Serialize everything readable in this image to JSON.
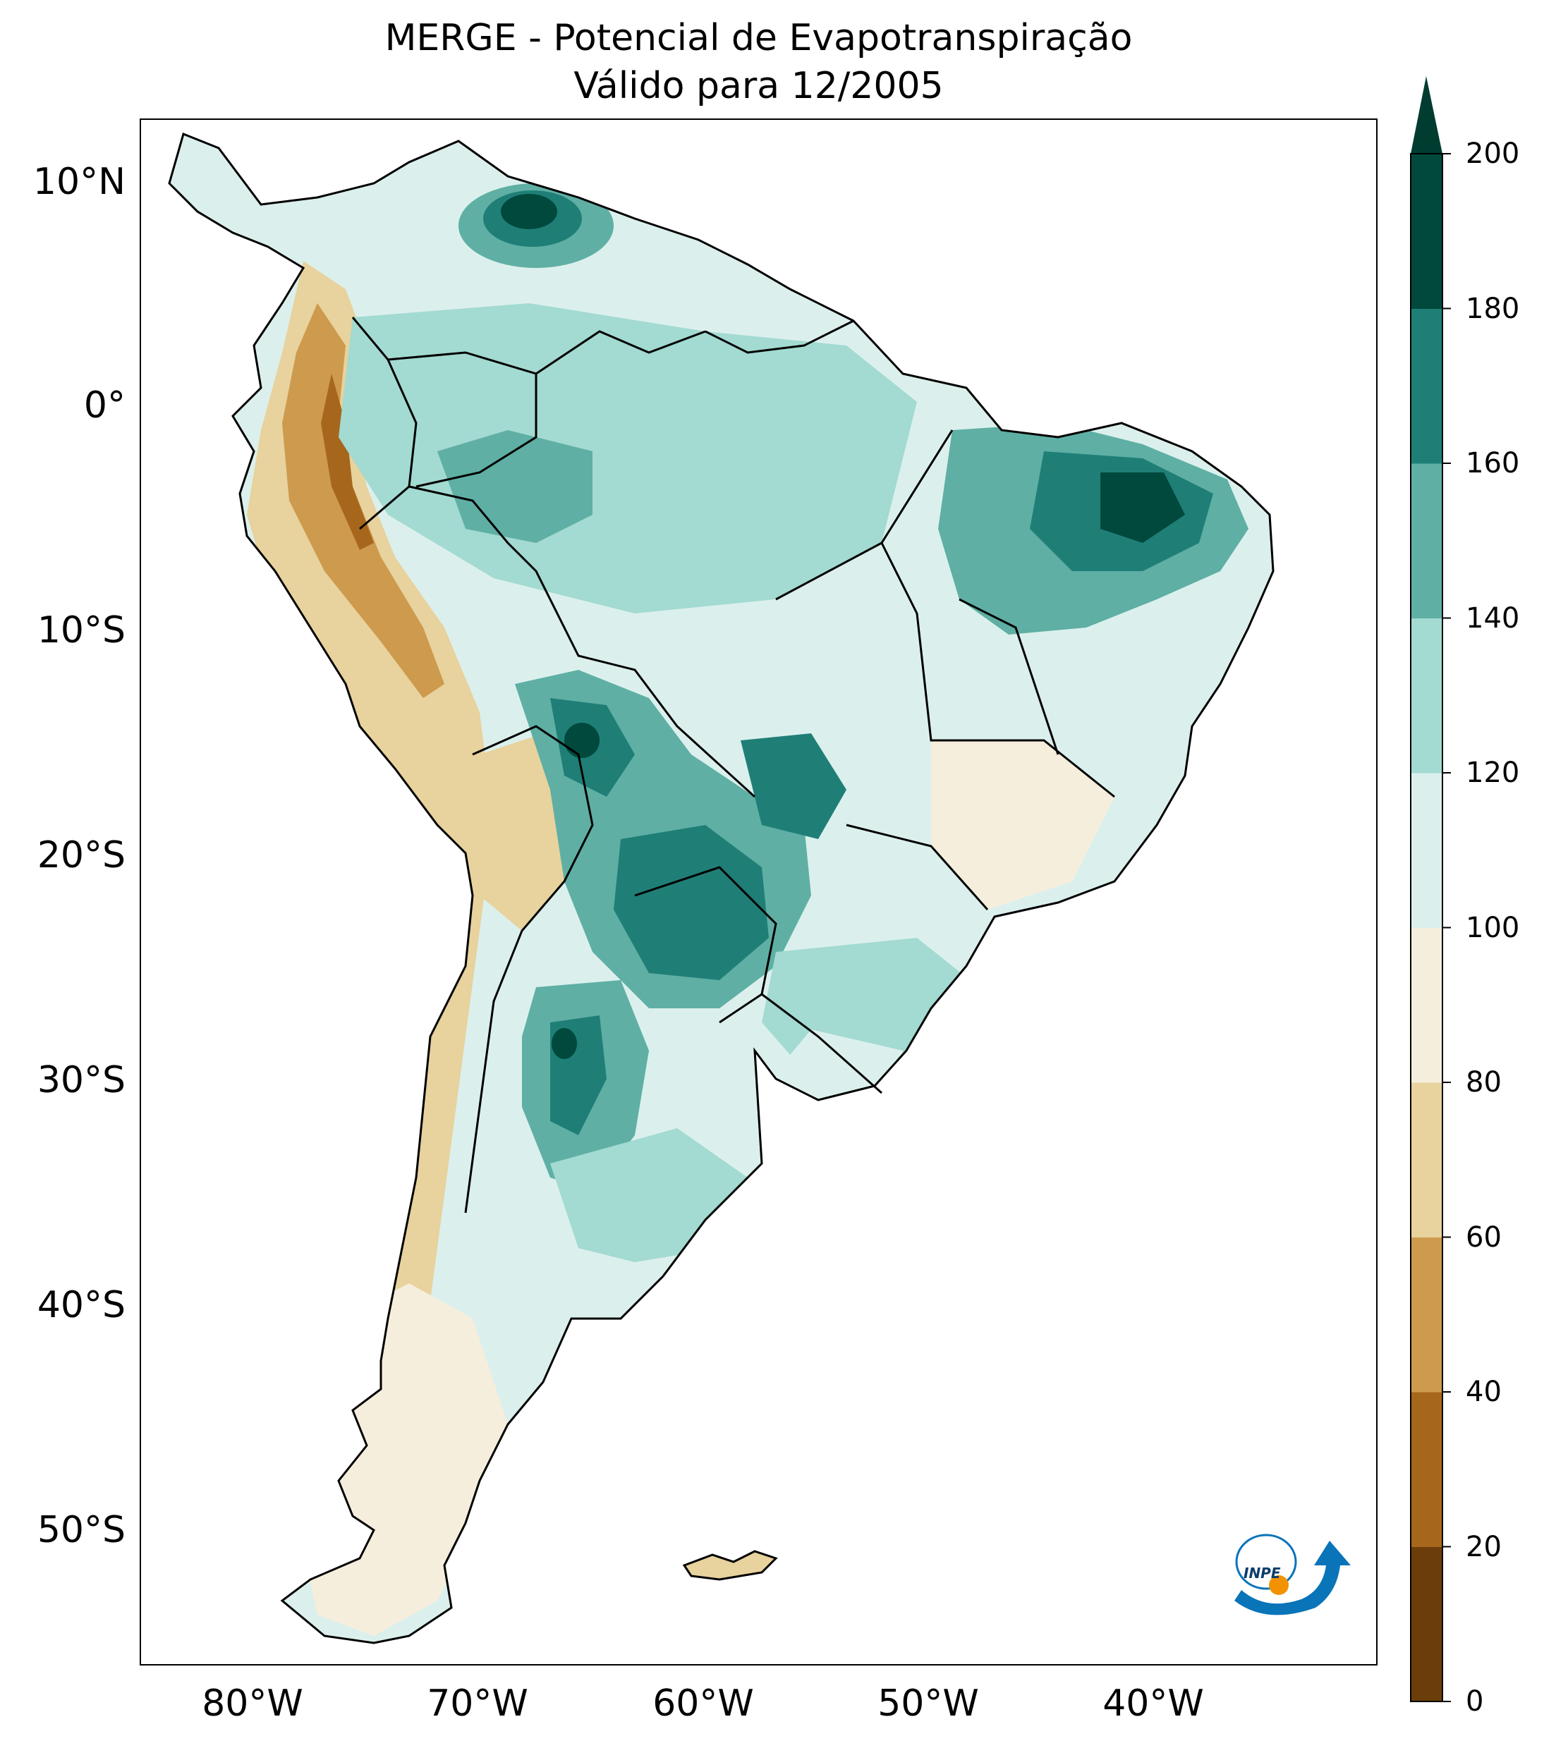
{
  "title": {
    "line1": "MERGE - Potencial de Evapotranspiração",
    "line2": "Válido para 12/2005"
  },
  "axes": {
    "lat_ticks": [
      "10°N",
      "0°",
      "10°S",
      "20°S",
      "30°S",
      "40°S",
      "50°S"
    ],
    "lon_ticks": [
      "80°W",
      "70°W",
      "60°W",
      "50°W",
      "40°W"
    ]
  },
  "colorbar": {
    "ticks": [
      "0",
      "20",
      "40",
      "60",
      "80",
      "100",
      "120",
      "140",
      "160",
      "180",
      "200"
    ],
    "levels": [
      0,
      20,
      40,
      60,
      80,
      100,
      120,
      140,
      160,
      180,
      200
    ],
    "colors": [
      "#6b3d0b",
      "#a6671c",
      "#cd9a4e",
      "#e8d29d",
      "#f6eedc",
      "#dbf0ed",
      "#a3dad1",
      "#5fafa4",
      "#1f7f77",
      "#01493d"
    ],
    "extend_color": "#003c30"
  },
  "logo": {
    "text": "INPE",
    "colors": {
      "blue": "#0a74b9",
      "orange": "#f39200"
    }
  }
}
